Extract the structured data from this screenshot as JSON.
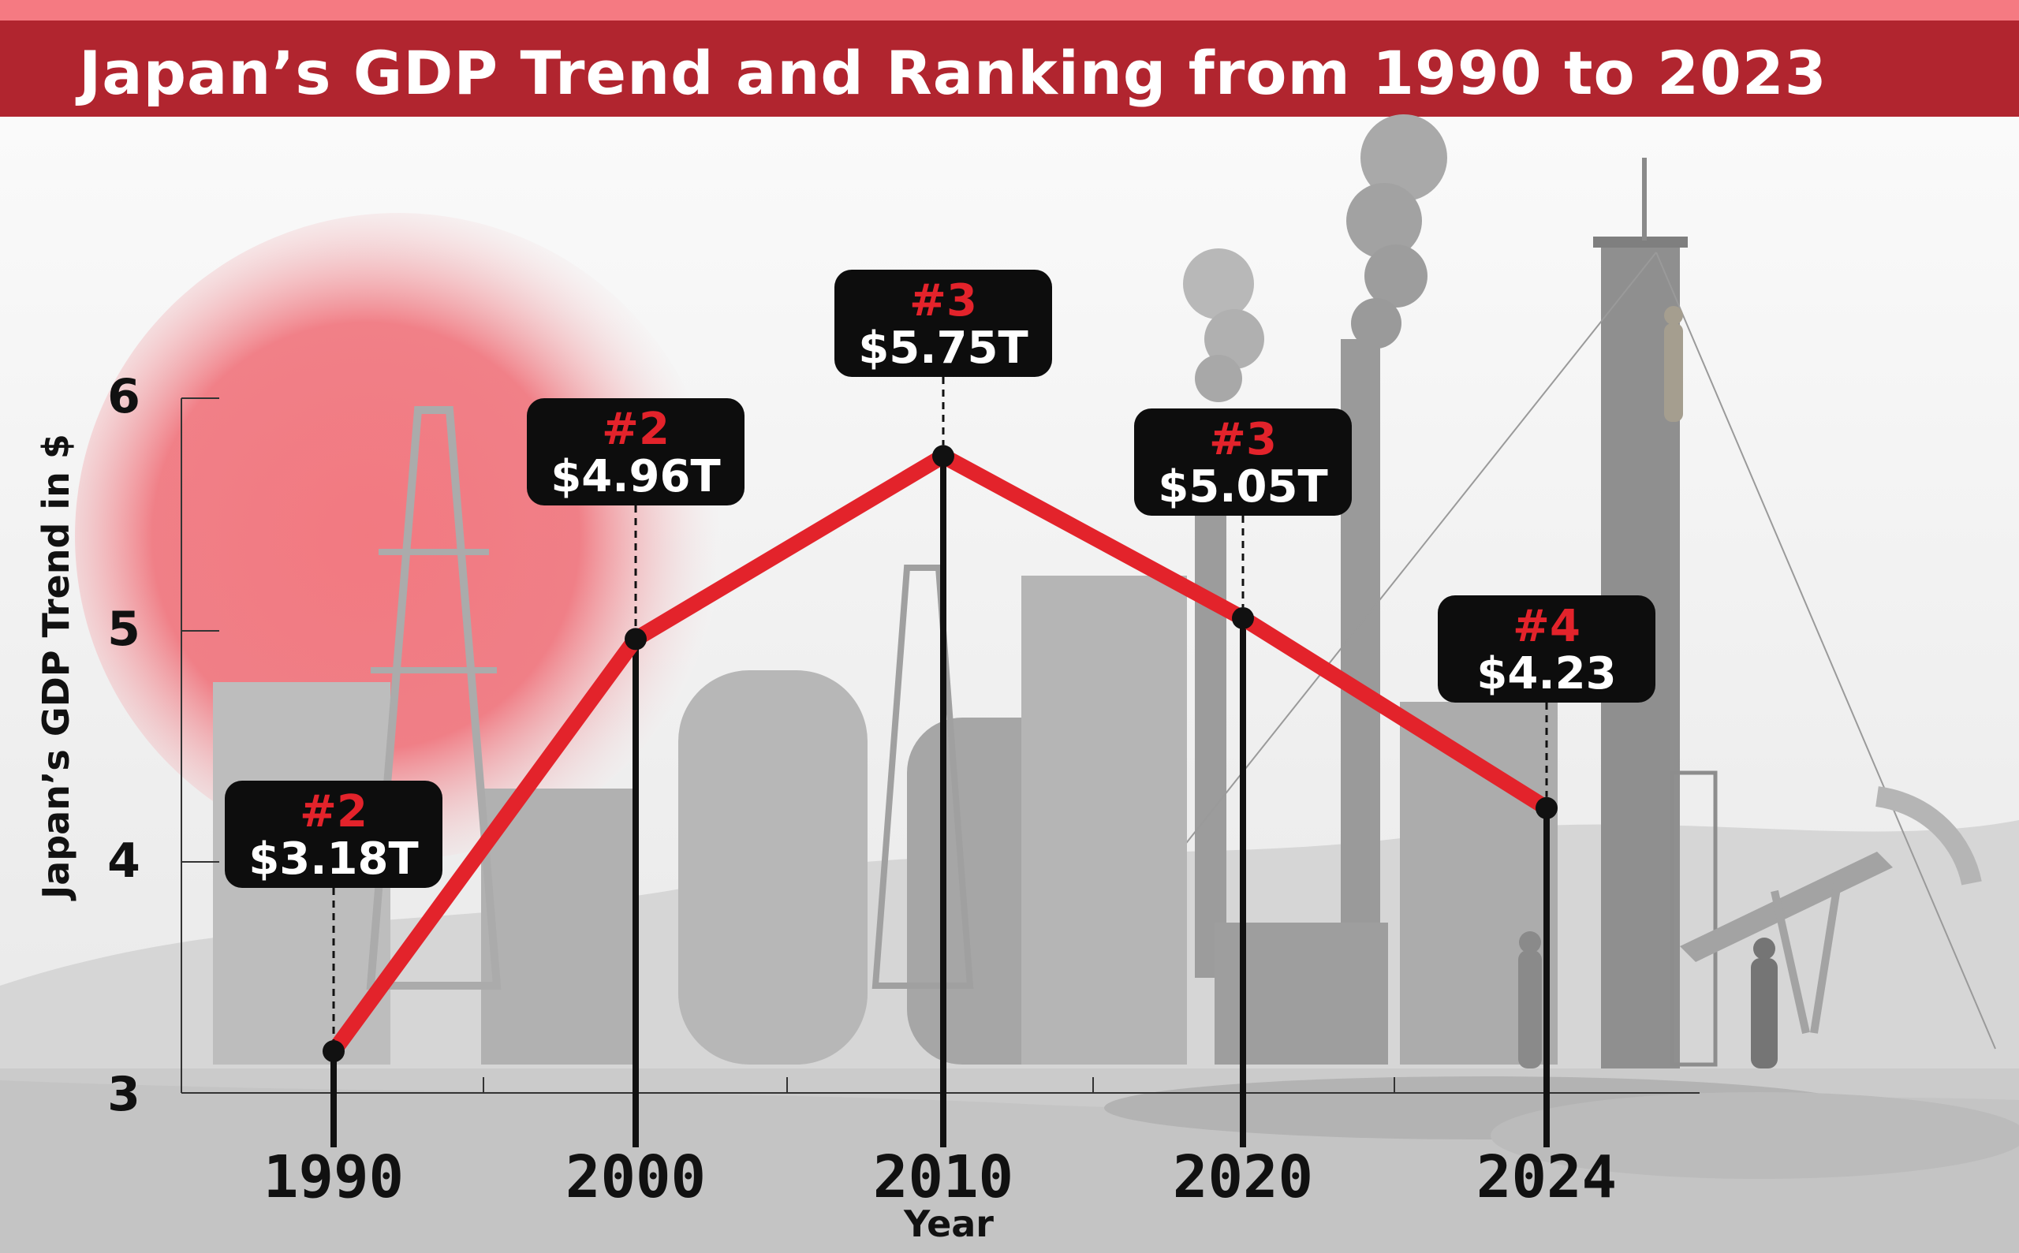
{
  "title": "Japan’s GDP Trend and Ranking from 1990 to 2023",
  "chart_data": {
    "type": "line",
    "title": "Japan’s GDP Trend and Ranking from 1990 to 2023",
    "xlabel": "Year",
    "ylabel": "Japan’s GDP Trend in $",
    "x": [
      "1990",
      "2000",
      "2010",
      "2020",
      "2024"
    ],
    "series": [
      {
        "values": [
          3.18,
          4.96,
          5.75,
          5.05,
          4.23
        ]
      }
    ],
    "labels": [
      "$3.18T",
      "$4.96T",
      "$5.75T",
      "$5.05T",
      "$4.23"
    ],
    "ranks": [
      "#2",
      "#2",
      "#3",
      "#3",
      "#4"
    ],
    "yticks": [
      "3",
      "4",
      "5",
      "6"
    ],
    "ylim": [
      3,
      6
    ],
    "grid": false,
    "line_color": "#e3232b",
    "accent": "#b1252f"
  }
}
